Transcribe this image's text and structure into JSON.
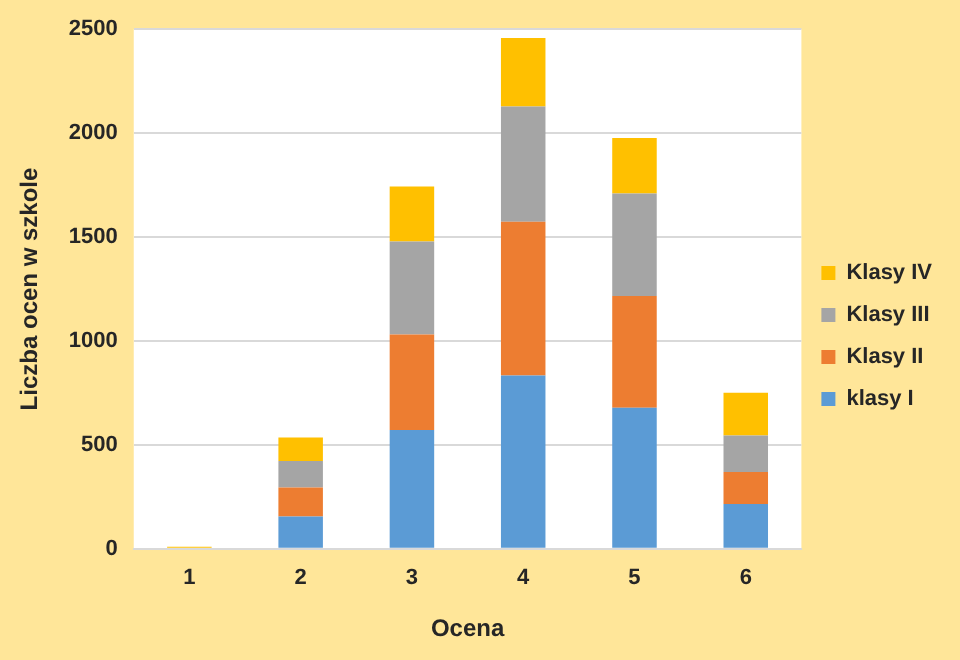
{
  "chart_data": {
    "type": "bar",
    "stacked": true,
    "xlabel": "Ocena",
    "ylabel": "Liczba ocen w szkole",
    "categories": [
      "1",
      "2",
      "3",
      "4",
      "5",
      "6"
    ],
    "series": [
      {
        "name": "klasy I",
        "color": "#5b9bd5",
        "values": [
          0,
          155,
          572,
          834,
          679,
          215
        ]
      },
      {
        "name": "Klasy II",
        "color": "#ed7d31",
        "values": [
          0,
          140,
          459,
          739,
          537,
          154
        ]
      },
      {
        "name": "Klasy III",
        "color": "#a5a5a5",
        "values": [
          0,
          128,
          447,
          555,
          494,
          176
        ]
      },
      {
        "name": "Klasy IV",
        "color": "#ffc000",
        "values": [
          10,
          113,
          265,
          330,
          266,
          206
        ]
      }
    ],
    "ylim": [
      0,
      2500
    ],
    "yticks": [
      0,
      500,
      1000,
      1500,
      2000,
      2500
    ],
    "grid": "y",
    "legend": "right"
  }
}
